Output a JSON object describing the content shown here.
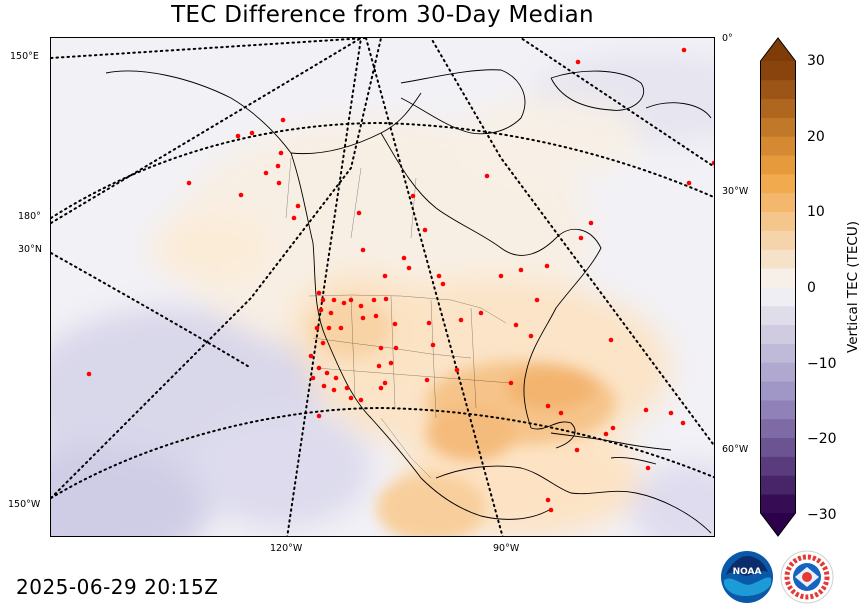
{
  "title": "TEC Difference from 30-Day Median",
  "timestamp": "2025-06-29 20:15Z",
  "map": {
    "projection": "polar-stereographic",
    "meridian_labels_bottom": [
      "120°W",
      "90°W"
    ],
    "left_labels": [
      "150°E",
      "180°",
      "30°N",
      "150°W"
    ],
    "right_labels": [
      "0°",
      "30°W",
      "60°W"
    ]
  },
  "colorbar": {
    "label": "Vertical TEC (TECU)",
    "ticks": [
      "30",
      "20",
      "10",
      "0",
      "−10",
      "−20",
      "−30"
    ],
    "min": -30,
    "max": 30,
    "colors": {
      "positive_max": "#7f3b08",
      "positive_mid": "#f1a340",
      "neutral": "#f7f7f7",
      "negative_mid": "#998ec3",
      "negative_max": "#2d004b"
    }
  },
  "logos": [
    "noaa-logo",
    "nws-logo"
  ],
  "station_color": "#ff0000"
}
